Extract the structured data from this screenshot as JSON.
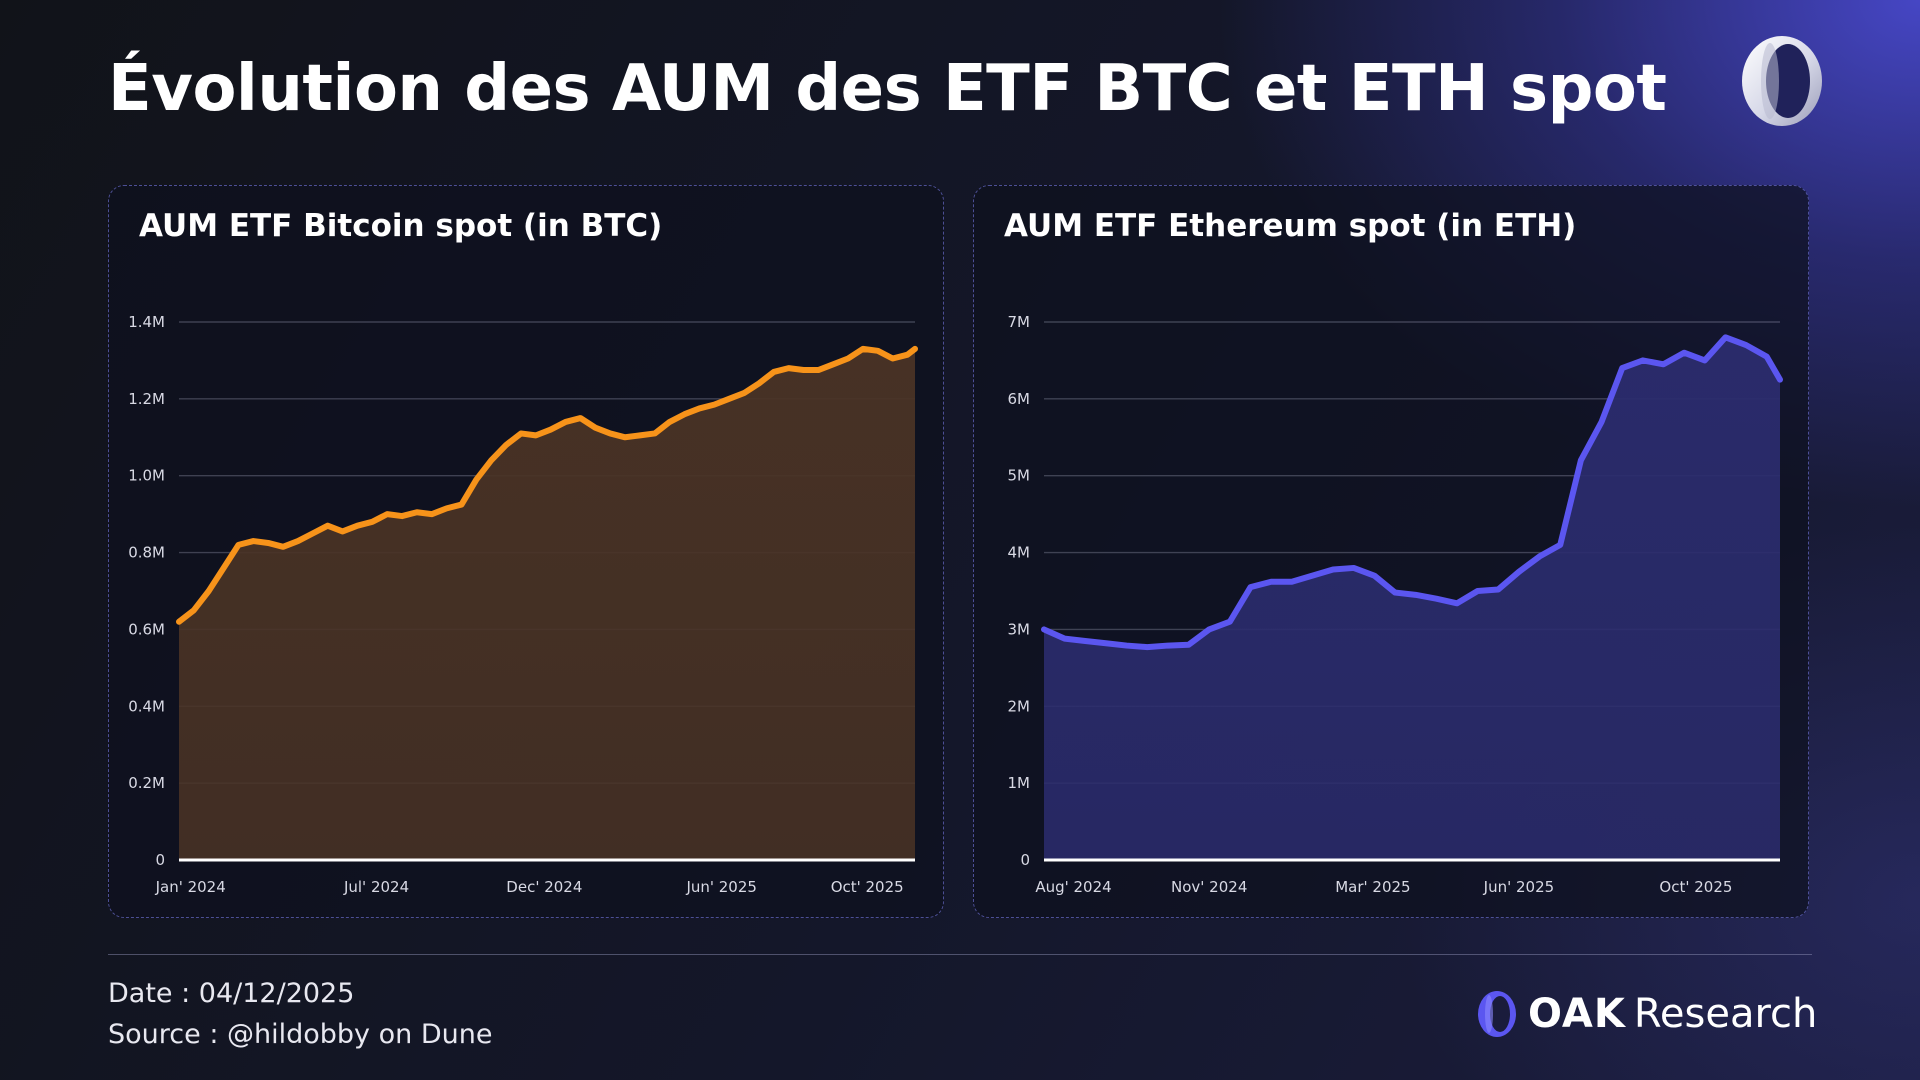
{
  "page": {
    "title": "Évolution des AUM des ETF BTC et ETH spot",
    "date_line": "Date : 04/12/2025",
    "source_line": "Source : @hildobby on Dune",
    "brand": {
      "strong": "OAK",
      "light": "Research"
    },
    "icons": [
      "oak-ring-logo-icon"
    ]
  },
  "chart_data": [
    {
      "type": "area",
      "title": "AUM ETF Bitcoin spot (in BTC)",
      "xlabel": "",
      "ylabel": "",
      "x_ticks": [
        "Jan' 2024",
        "Jul' 2024",
        "Dec' 2024",
        "Jun' 2025",
        "Oct' 2025"
      ],
      "y_ticks": [
        "0",
        "0.2M",
        "0.4M",
        "0.6M",
        "0.8M",
        "1.0M",
        "1.2M",
        "1.4M"
      ],
      "ylim": [
        0,
        1400000
      ],
      "xlim": [
        "2024-01-11",
        "2025-12-04"
      ],
      "grid": true,
      "legend": "none",
      "line_color": "#f7931a",
      "fill_color": "#4a3325",
      "series": [
        {
          "x": [
            "2024-01-11",
            "2024-01-25",
            "2024-02-08",
            "2024-02-22",
            "2024-03-07",
            "2024-03-21",
            "2024-04-04",
            "2024-04-18",
            "2024-05-02",
            "2024-05-16",
            "2024-05-30",
            "2024-06-13",
            "2024-06-27",
            "2024-07-11",
            "2024-07-25",
            "2024-08-08",
            "2024-08-22",
            "2024-09-05",
            "2024-09-19",
            "2024-10-03",
            "2024-10-17",
            "2024-10-31",
            "2024-11-14",
            "2024-11-28",
            "2024-12-12",
            "2024-12-26",
            "2025-01-09",
            "2025-01-23",
            "2025-02-06",
            "2025-02-20",
            "2025-03-06",
            "2025-03-20",
            "2025-04-03",
            "2025-04-17",
            "2025-05-01",
            "2025-05-15",
            "2025-05-29",
            "2025-06-12",
            "2025-06-26",
            "2025-07-10",
            "2025-07-24",
            "2025-08-07",
            "2025-08-21",
            "2025-09-04",
            "2025-09-18",
            "2025-10-02",
            "2025-10-16",
            "2025-10-30",
            "2025-11-13",
            "2025-11-27",
            "2025-12-04"
          ],
          "values": [
            620000,
            650000,
            700000,
            760000,
            820000,
            830000,
            825000,
            815000,
            830000,
            850000,
            870000,
            855000,
            870000,
            880000,
            900000,
            895000,
            905000,
            900000,
            915000,
            925000,
            990000,
            1040000,
            1080000,
            1110000,
            1105000,
            1120000,
            1140000,
            1150000,
            1125000,
            1110000,
            1100000,
            1105000,
            1110000,
            1140000,
            1160000,
            1175000,
            1185000,
            1200000,
            1215000,
            1240000,
            1270000,
            1280000,
            1275000,
            1275000,
            1290000,
            1305000,
            1330000,
            1325000,
            1305000,
            1315000,
            1330000
          ]
        }
      ]
    },
    {
      "type": "area",
      "title": "AUM ETF Ethereum spot (in ETH)",
      "xlabel": "",
      "ylabel": "",
      "x_ticks": [
        "Aug' 2024",
        "Nov' 2024",
        "Mar' 2025",
        "Jun' 2025",
        "Oct' 2025"
      ],
      "y_ticks": [
        "0",
        "1M",
        "2M",
        "3M",
        "4M",
        "5M",
        "6M",
        "7M"
      ],
      "ylim": [
        0,
        7000000
      ],
      "xlim": [
        "2024-07-23",
        "2025-12-04"
      ],
      "grid": true,
      "legend": "none",
      "line_color": "#5b56f0",
      "fill_color": "#2b2c6e",
      "series": [
        {
          "x": [
            "2024-07-23",
            "2024-08-06",
            "2024-08-20",
            "2024-09-03",
            "2024-09-17",
            "2024-10-01",
            "2024-10-15",
            "2024-10-29",
            "2024-11-12",
            "2024-11-26",
            "2024-12-10",
            "2024-12-24",
            "2025-01-07",
            "2025-01-21",
            "2025-02-04",
            "2025-02-18",
            "2025-03-04",
            "2025-03-18",
            "2025-04-01",
            "2025-04-15",
            "2025-04-29",
            "2025-05-13",
            "2025-05-27",
            "2025-06-10",
            "2025-06-24",
            "2025-07-08",
            "2025-07-22",
            "2025-08-05",
            "2025-08-19",
            "2025-09-02",
            "2025-09-16",
            "2025-09-30",
            "2025-10-14",
            "2025-10-28",
            "2025-11-11",
            "2025-11-25",
            "2025-12-04"
          ],
          "values": [
            3000000,
            2880000,
            2850000,
            2820000,
            2790000,
            2770000,
            2790000,
            2800000,
            3000000,
            3100000,
            3550000,
            3620000,
            3620000,
            3700000,
            3780000,
            3800000,
            3700000,
            3480000,
            3450000,
            3400000,
            3340000,
            3500000,
            3520000,
            3750000,
            3950000,
            4100000,
            5200000,
            5700000,
            6400000,
            6500000,
            6450000,
            6600000,
            6500000,
            6800000,
            6700000,
            6550000,
            6250000
          ]
        }
      ]
    }
  ]
}
